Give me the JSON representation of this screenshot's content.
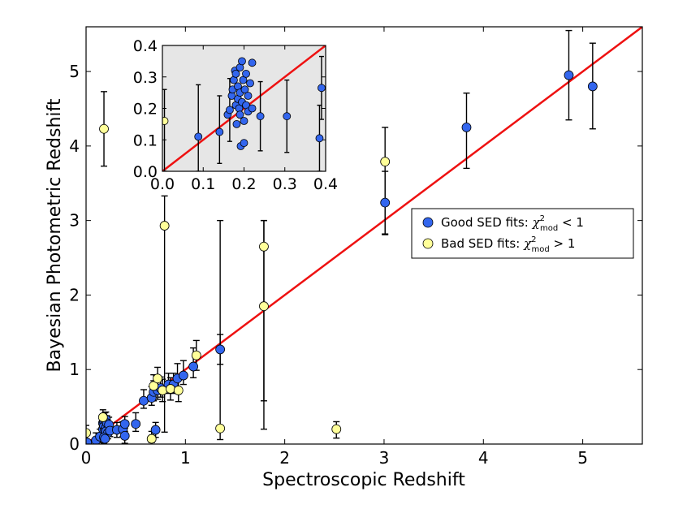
{
  "chart_data": {
    "type": "scatter",
    "xlabel": "Spectroscopic Redshift",
    "ylabel": "Bayesian Photometric Redshift",
    "xlim": [
      0,
      5.6
    ],
    "ylim": [
      0,
      5.6
    ],
    "xticks": [
      "0",
      "1",
      "2",
      "3",
      "4",
      "5"
    ],
    "yticks": [
      "0",
      "1",
      "2",
      "3",
      "4",
      "5"
    ],
    "one_to_one_line": {
      "color": "#ee1111",
      "from": [
        0,
        0
      ],
      "to": [
        5.6,
        5.6
      ]
    },
    "legend": {
      "placement": "right",
      "entries": [
        {
          "label_prefix": "Good SED fits: ",
          "math_symbol": "χ",
          "math_superscript": "2",
          "math_subscript": "mod",
          "label_suffix": " < 1",
          "color": "#3366ee"
        },
        {
          "label_prefix": "Bad SED fits: ",
          "math_symbol": "χ",
          "math_superscript": "2",
          "math_subscript": "mod",
          "label_suffix": " > 1",
          "color": "#ffff99"
        }
      ]
    },
    "series": [
      {
        "name": "Good SED fits",
        "color": "#3366ee",
        "points": [
          {
            "x": 0.01,
            "y": 0.02,
            "err_lo": 0.02,
            "err_hi": 0.1
          },
          {
            "x": 0.1,
            "y": 0.05,
            "err_lo": 0.05,
            "err_hi": 0.1
          },
          {
            "x": 0.14,
            "y": 0.1,
            "err_lo": 0.08,
            "err_hi": 0.1
          },
          {
            "x": 0.17,
            "y": 0.2,
            "err_lo": 0.08,
            "err_hi": 0.1
          },
          {
            "x": 0.17,
            "y": 0.28,
            "err_lo": 0.08,
            "err_hi": 0.1
          },
          {
            "x": 0.18,
            "y": 0.3,
            "err_lo": 0.08,
            "err_hi": 0.1
          },
          {
            "x": 0.18,
            "y": 0.24,
            "err_lo": 0.08,
            "err_hi": 0.1
          },
          {
            "x": 0.19,
            "y": 0.32,
            "err_lo": 0.08,
            "err_hi": 0.1
          },
          {
            "x": 0.19,
            "y": 0.19,
            "err_lo": 0.08,
            "err_hi": 0.1
          },
          {
            "x": 0.2,
            "y": 0.33,
            "err_lo": 0.08,
            "err_hi": 0.1
          },
          {
            "x": 0.2,
            "y": 0.22,
            "err_lo": 0.08,
            "err_hi": 0.1
          },
          {
            "x": 0.21,
            "y": 0.28,
            "err_lo": 0.08,
            "err_hi": 0.1
          },
          {
            "x": 0.2,
            "y": 0.17,
            "err_lo": 0.08,
            "err_hi": 0.1
          },
          {
            "x": 0.22,
            "y": 0.15,
            "err_lo": 0.08,
            "err_hi": 0.1
          },
          {
            "x": 0.18,
            "y": 0.09,
            "err_lo": 0.08,
            "err_hi": 0.1
          },
          {
            "x": 0.19,
            "y": 0.07,
            "err_lo": 0.08,
            "err_hi": 0.1
          },
          {
            "x": 0.23,
            "y": 0.26,
            "err_lo": 0.08,
            "err_hi": 0.1
          },
          {
            "x": 0.24,
            "y": 0.18,
            "err_lo": 0.08,
            "err_hi": 0.1
          },
          {
            "x": 0.31,
            "y": 0.19,
            "err_lo": 0.1,
            "err_hi": 0.1
          },
          {
            "x": 0.37,
            "y": 0.2,
            "err_lo": 0.1,
            "err_hi": 0.1
          },
          {
            "x": 0.39,
            "y": 0.27,
            "err_lo": 0.1,
            "err_hi": 0.1
          },
          {
            "x": 0.39,
            "y": 0.11,
            "err_lo": 0.1,
            "err_hi": 0.1
          },
          {
            "x": 0.5,
            "y": 0.27,
            "err_lo": 0.1,
            "err_hi": 0.15
          },
          {
            "x": 0.58,
            "y": 0.58,
            "err_lo": 0.1,
            "err_hi": 0.15
          },
          {
            "x": 0.66,
            "y": 0.62,
            "err_lo": 0.1,
            "err_hi": 0.15
          },
          {
            "x": 0.68,
            "y": 0.7,
            "err_lo": 0.12,
            "err_hi": 0.15
          },
          {
            "x": 0.7,
            "y": 0.19,
            "err_lo": 0.1,
            "err_hi": 0.1
          },
          {
            "x": 0.72,
            "y": 0.72,
            "err_lo": 0.12,
            "err_hi": 0.15
          },
          {
            "x": 0.75,
            "y": 0.75,
            "err_lo": 0.12,
            "err_hi": 0.15
          },
          {
            "x": 0.83,
            "y": 0.8,
            "err_lo": 0.12,
            "err_hi": 0.15
          },
          {
            "x": 0.88,
            "y": 0.8,
            "err_lo": 0.12,
            "err_hi": 0.15
          },
          {
            "x": 0.92,
            "y": 0.88,
            "err_lo": 0.12,
            "err_hi": 0.2
          },
          {
            "x": 0.98,
            "y": 0.92,
            "err_lo": 0.12,
            "err_hi": 0.2
          },
          {
            "x": 1.08,
            "y": 1.04,
            "err_lo": 0.15,
            "err_hi": 0.25
          },
          {
            "x": 1.35,
            "y": 1.27,
            "err_lo": 0.2,
            "err_hi": 0.2
          },
          {
            "x": 3.01,
            "y": 3.24,
            "err_lo": 0.42,
            "err_hi": 0.42
          },
          {
            "x": 3.83,
            "y": 4.25,
            "err_lo": 0.55,
            "err_hi": 0.46
          },
          {
            "x": 4.86,
            "y": 4.95,
            "err_lo": 0.6,
            "err_hi": 0.6
          },
          {
            "x": 5.1,
            "y": 4.8,
            "err_lo": 0.57,
            "err_hi": 0.58
          }
        ]
      },
      {
        "name": "Bad SED fits",
        "color": "#ffff99",
        "points": [
          {
            "x": 0.0,
            "y": 0.15,
            "err_lo": 0.1,
            "err_hi": 0.1
          },
          {
            "x": 0.17,
            "y": 0.36,
            "err_lo": 0.1,
            "err_hi": 0.1
          },
          {
            "x": 0.18,
            "y": 4.23,
            "err_lo": 0.5,
            "err_hi": 0.5
          },
          {
            "x": 0.66,
            "y": 0.07,
            "err_lo": 0.05,
            "err_hi": 0.1
          },
          {
            "x": 0.68,
            "y": 0.78,
            "err_lo": 0.15,
            "err_hi": 0.15
          },
          {
            "x": 0.72,
            "y": 0.88,
            "err_lo": 0.15,
            "err_hi": 0.15
          },
          {
            "x": 0.77,
            "y": 0.72,
            "err_lo": 0.15,
            "err_hi": 0.15
          },
          {
            "x": 0.79,
            "y": 2.93,
            "err_lo": 2.77,
            "err_hi": 0.4
          },
          {
            "x": 0.85,
            "y": 0.74,
            "err_lo": 0.15,
            "err_hi": 0.15
          },
          {
            "x": 0.93,
            "y": 0.72,
            "err_lo": 0.15,
            "err_hi": 0.15
          },
          {
            "x": 1.11,
            "y": 1.19,
            "err_lo": 0.2,
            "err_hi": 0.2
          },
          {
            "x": 1.35,
            "y": 0.21,
            "err_lo": 0.15,
            "err_hi": 2.79
          },
          {
            "x": 1.79,
            "y": 1.85,
            "err_lo": 1.27,
            "err_hi": 1.15
          },
          {
            "x": 1.79,
            "y": 2.65,
            "err_lo": 2.45,
            "err_hi": 0.35
          },
          {
            "x": 2.52,
            "y": 0.2,
            "err_lo": 0.12,
            "err_hi": 0.1
          },
          {
            "x": 3.01,
            "y": 3.79,
            "err_lo": 0.98,
            "err_hi": 0.46
          }
        ]
      }
    ],
    "inset": {
      "xlim": [
        0,
        0.4
      ],
      "ylim": [
        0,
        0.4
      ],
      "xticks": [
        "0.0",
        "0.1",
        "0.2",
        "0.3",
        "0.4"
      ],
      "yticks": [
        "0.0",
        "0.1",
        "0.2",
        "0.3",
        "0.4"
      ],
      "background": "#e6e6e6",
      "good_points": [
        {
          "x": 0.088,
          "y": 0.11,
          "err_lo": 0.11,
          "err_hi": 0.165
        },
        {
          "x": 0.14,
          "y": 0.125,
          "err_lo": 0.1,
          "err_hi": 0.115
        },
        {
          "x": 0.16,
          "y": 0.18,
          "err_lo": 0,
          "err_hi": 0
        },
        {
          "x": 0.165,
          "y": 0.195,
          "err_lo": 0.1,
          "err_hi": 0.1
        },
        {
          "x": 0.17,
          "y": 0.24,
          "err_lo": 0,
          "err_hi": 0
        },
        {
          "x": 0.172,
          "y": 0.26,
          "err_lo": 0,
          "err_hi": 0
        },
        {
          "x": 0.175,
          "y": 0.29,
          "err_lo": 0,
          "err_hi": 0
        },
        {
          "x": 0.178,
          "y": 0.32,
          "err_lo": 0,
          "err_hi": 0
        },
        {
          "x": 0.18,
          "y": 0.31,
          "err_lo": 0,
          "err_hi": 0
        },
        {
          "x": 0.18,
          "y": 0.21,
          "err_lo": 0,
          "err_hi": 0
        },
        {
          "x": 0.182,
          "y": 0.15,
          "err_lo": 0,
          "err_hi": 0
        },
        {
          "x": 0.185,
          "y": 0.23,
          "err_lo": 0,
          "err_hi": 0
        },
        {
          "x": 0.185,
          "y": 0.27,
          "err_lo": 0,
          "err_hi": 0
        },
        {
          "x": 0.188,
          "y": 0.2,
          "err_lo": 0,
          "err_hi": 0
        },
        {
          "x": 0.19,
          "y": 0.33,
          "err_lo": 0,
          "err_hi": 0
        },
        {
          "x": 0.19,
          "y": 0.25,
          "err_lo": 0,
          "err_hi": 0
        },
        {
          "x": 0.19,
          "y": 0.18,
          "err_lo": 0,
          "err_hi": 0
        },
        {
          "x": 0.192,
          "y": 0.08,
          "err_lo": 0,
          "err_hi": 0
        },
        {
          "x": 0.195,
          "y": 0.35,
          "err_lo": 0,
          "err_hi": 0
        },
        {
          "x": 0.195,
          "y": 0.22,
          "err_lo": 0,
          "err_hi": 0
        },
        {
          "x": 0.198,
          "y": 0.29,
          "err_lo": 0,
          "err_hi": 0
        },
        {
          "x": 0.2,
          "y": 0.16,
          "err_lo": 0,
          "err_hi": 0
        },
        {
          "x": 0.2,
          "y": 0.09,
          "err_lo": 0,
          "err_hi": 0
        },
        {
          "x": 0.202,
          "y": 0.26,
          "err_lo": 0,
          "err_hi": 0
        },
        {
          "x": 0.205,
          "y": 0.21,
          "err_lo": 0,
          "err_hi": 0
        },
        {
          "x": 0.205,
          "y": 0.31,
          "err_lo": 0,
          "err_hi": 0
        },
        {
          "x": 0.21,
          "y": 0.24,
          "err_lo": 0,
          "err_hi": 0
        },
        {
          "x": 0.21,
          "y": 0.19,
          "err_lo": 0,
          "err_hi": 0
        },
        {
          "x": 0.215,
          "y": 0.28,
          "err_lo": 0,
          "err_hi": 0
        },
        {
          "x": 0.22,
          "y": 0.345,
          "err_lo": 0,
          "err_hi": 0
        },
        {
          "x": 0.22,
          "y": 0.2,
          "err_lo": 0,
          "err_hi": 0
        },
        {
          "x": 0.24,
          "y": 0.175,
          "err_lo": 0.11,
          "err_hi": 0.11
        },
        {
          "x": 0.305,
          "y": 0.175,
          "err_lo": 0.115,
          "err_hi": 0.115
        },
        {
          "x": 0.39,
          "y": 0.265,
          "err_lo": 0.1,
          "err_hi": 0.1
        },
        {
          "x": 0.385,
          "y": 0.105,
          "err_lo": 0.105,
          "err_hi": 0.105
        }
      ],
      "bad_points": [
        {
          "x": 0.005,
          "y": 0.16,
          "err_lo": 0.16,
          "err_hi": 0.1
        }
      ]
    }
  }
}
